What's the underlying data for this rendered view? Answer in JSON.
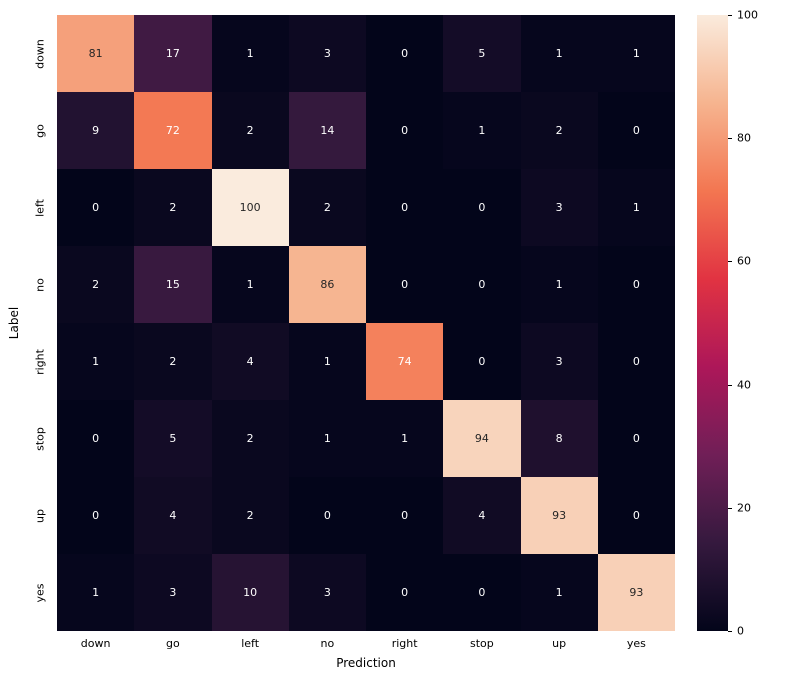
{
  "chart_data": {
    "type": "heatmap",
    "title": "",
    "xlabel": "Prediction",
    "ylabel": "Label",
    "x_categories": [
      "down",
      "go",
      "left",
      "no",
      "right",
      "stop",
      "up",
      "yes"
    ],
    "y_categories": [
      "down",
      "go",
      "left",
      "no",
      "right",
      "stop",
      "up",
      "yes"
    ],
    "matrix": [
      [
        81,
        17,
        1,
        3,
        0,
        5,
        1,
        1
      ],
      [
        9,
        72,
        2,
        14,
        0,
        1,
        2,
        0
      ],
      [
        0,
        2,
        100,
        2,
        0,
        0,
        3,
        1
      ],
      [
        2,
        15,
        1,
        86,
        0,
        0,
        1,
        0
      ],
      [
        1,
        2,
        4,
        1,
        74,
        0,
        3,
        0
      ],
      [
        0,
        5,
        2,
        1,
        1,
        94,
        8,
        0
      ],
      [
        0,
        4,
        2,
        0,
        0,
        4,
        93,
        0
      ],
      [
        1,
        3,
        10,
        3,
        0,
        0,
        1,
        93
      ]
    ],
    "vmin": 0,
    "vmax": 100,
    "colormap": "rocket",
    "colormap_stops": [
      [
        0.0,
        "#03051a"
      ],
      [
        0.143,
        "#35193e"
      ],
      [
        0.286,
        "#701f57"
      ],
      [
        0.429,
        "#ad1759"
      ],
      [
        0.571,
        "#e13342"
      ],
      [
        0.714,
        "#f37651"
      ],
      [
        0.857,
        "#f6b48f"
      ],
      [
        1.0,
        "#faebdd"
      ]
    ],
    "annotation_colors": {
      "light_text": "#ffffff",
      "dark_text": "#262626"
    },
    "colorbar": {
      "position": "right",
      "ticks": [
        0,
        20,
        40,
        60,
        80,
        100
      ]
    },
    "grid": false,
    "legend": false
  }
}
